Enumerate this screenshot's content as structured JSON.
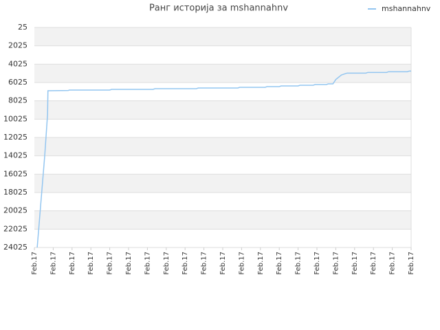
{
  "chart_data": {
    "type": "line",
    "title": "Ранг историја за mshannahnv",
    "series": [
      {
        "name": "mshannahnv",
        "color": "#92c5f0",
        "x": [
          0.15,
          0.35,
          0.55,
          0.7,
          0.72,
          1.8,
          1.85,
          4.0,
          4.1,
          6.3,
          6.4,
          8.6,
          8.7,
          10.8,
          10.9,
          12.25,
          12.35,
          13.0,
          13.1,
          14.0,
          14.1,
          14.8,
          14.9,
          15.5,
          15.6,
          15.85,
          16.0,
          16.3,
          16.6,
          17.6,
          17.7,
          18.7,
          18.8,
          19.8,
          19.9,
          20.0
        ],
        "values": [
          24025,
          19000,
          14000,
          9500,
          6925,
          6900,
          6850,
          6850,
          6775,
          6775,
          6700,
          6700,
          6625,
          6625,
          6550,
          6550,
          6475,
          6475,
          6400,
          6400,
          6325,
          6325,
          6250,
          6250,
          6175,
          6175,
          5700,
          5200,
          5000,
          5000,
          4925,
          4925,
          4850,
          4850,
          4775,
          4775
        ]
      }
    ],
    "xlim": [
      0,
      20
    ],
    "xticks": [
      {
        "value": 0,
        "label": "Feb.17"
      },
      {
        "value": 1,
        "label": "Feb.17"
      },
      {
        "value": 2,
        "label": "Feb.17"
      },
      {
        "value": 3,
        "label": "Feb.17"
      },
      {
        "value": 4,
        "label": "Feb.17"
      },
      {
        "value": 5,
        "label": "Feb.17"
      },
      {
        "value": 6,
        "label": "Feb.17"
      },
      {
        "value": 7,
        "label": "Feb.17"
      },
      {
        "value": 8,
        "label": "Feb.17"
      },
      {
        "value": 9,
        "label": "Feb.17"
      },
      {
        "value": 10,
        "label": "Feb.17"
      },
      {
        "value": 11,
        "label": "Feb.17"
      },
      {
        "value": 12,
        "label": "Feb.17"
      },
      {
        "value": 13,
        "label": "Feb.17"
      },
      {
        "value": 14,
        "label": "Feb.17"
      },
      {
        "value": 15,
        "label": "Feb.17"
      },
      {
        "value": 16,
        "label": "Feb.17"
      },
      {
        "value": 17,
        "label": "Feb.17"
      },
      {
        "value": 18,
        "label": "Feb.17"
      },
      {
        "value": 19,
        "label": "Feb.17"
      },
      {
        "value": 20,
        "label": "Feb.17"
      }
    ],
    "ylim": [
      24025,
      25
    ],
    "yticks": [
      25,
      2025,
      4025,
      6025,
      8025,
      10025,
      12025,
      14025,
      16025,
      18025,
      20025,
      22025,
      24025
    ],
    "grid": true,
    "legend": "top-right"
  }
}
